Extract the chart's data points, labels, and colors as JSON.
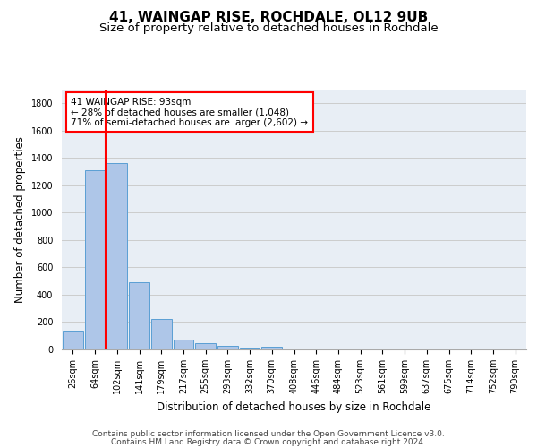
{
  "title1": "41, WAINGAP RISE, ROCHDALE, OL12 9UB",
  "title2": "Size of property relative to detached houses in Rochdale",
  "xlabel": "Distribution of detached houses by size in Rochdale",
  "ylabel": "Number of detached properties",
  "footer1": "Contains HM Land Registry data © Crown copyright and database right 2024.",
  "footer2": "Contains public sector information licensed under the Open Government Licence v3.0.",
  "bar_labels": [
    "26sqm",
    "64sqm",
    "102sqm",
    "141sqm",
    "179sqm",
    "217sqm",
    "255sqm",
    "293sqm",
    "332sqm",
    "370sqm",
    "408sqm",
    "446sqm",
    "484sqm",
    "523sqm",
    "561sqm",
    "599sqm",
    "637sqm",
    "675sqm",
    "714sqm",
    "752sqm",
    "790sqm"
  ],
  "bar_values": [
    140,
    1310,
    1360,
    490,
    225,
    75,
    45,
    25,
    15,
    20,
    5,
    0,
    0,
    0,
    0,
    0,
    0,
    0,
    0,
    0,
    0
  ],
  "bar_color": "#aec6e8",
  "bar_edge_color": "#5a9fd4",
  "annotation_text": "41 WAINGAP RISE: 93sqm\n← 28% of detached houses are smaller (1,048)\n71% of semi-detached houses are larger (2,602) →",
  "annotation_box_color": "white",
  "annotation_box_edge": "red",
  "vline_x": 1.5,
  "vline_color": "red",
  "ylim": [
    0,
    1900
  ],
  "yticks": [
    0,
    200,
    400,
    600,
    800,
    1000,
    1200,
    1400,
    1600,
    1800
  ],
  "grid_color": "#cccccc",
  "bg_color": "#e8eef5",
  "title_fontsize": 11,
  "subtitle_fontsize": 9.5,
  "tick_fontsize": 7,
  "ylabel_fontsize": 8.5,
  "xlabel_fontsize": 8.5,
  "footer_fontsize": 6.5,
  "annot_fontsize": 7.5
}
